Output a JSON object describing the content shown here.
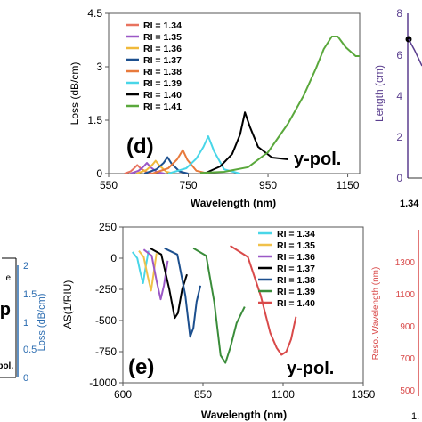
{
  "chart_data": [
    {
      "id": "d",
      "type": "line",
      "panel_label": "(d)",
      "annotation": "y-pol.",
      "xlabel": "Wavelength (nm)",
      "ylabel": "Loss (dB/cm)",
      "xlim": [
        550,
        1180
      ],
      "ylim": [
        0,
        4.5
      ],
      "xticks": [
        {
          "v": 550,
          "label": "550"
        },
        {
          "v": 750,
          "label": "750"
        },
        {
          "v": 950,
          "label": "950"
        },
        {
          "v": 1150,
          "label": "1150"
        }
      ],
      "yticks": [
        {
          "v": 0,
          "label": "0"
        },
        {
          "v": 1.5,
          "label": "1.5"
        },
        {
          "v": 3,
          "label": "3"
        },
        {
          "v": 4.5,
          "label": "4.5"
        }
      ],
      "legend_position": "top-left",
      "series": [
        {
          "name": "RI = 1.34",
          "color": "#e8735f",
          "x": [
            590,
            605,
            615,
            622,
            630,
            645,
            660
          ],
          "y": [
            0.0,
            0.06,
            0.16,
            0.24,
            0.15,
            0.04,
            0.0
          ]
        },
        {
          "name": "RI = 1.35",
          "color": "#9b58c6",
          "x": [
            605,
            625,
            638,
            646,
            655,
            672,
            690
          ],
          "y": [
            0.0,
            0.08,
            0.2,
            0.3,
            0.18,
            0.04,
            0.0
          ]
        },
        {
          "name": "RI = 1.36",
          "color": "#f0b93a",
          "x": [
            620,
            645,
            660,
            668,
            678,
            695,
            715
          ],
          "y": [
            0.0,
            0.1,
            0.25,
            0.36,
            0.22,
            0.05,
            0.0
          ]
        },
        {
          "name": "RI = 1.37",
          "color": "#1c4f8e",
          "x": [
            640,
            670,
            688,
            698,
            708,
            728,
            750
          ],
          "y": [
            0.0,
            0.12,
            0.3,
            0.46,
            0.28,
            0.06,
            0.0
          ]
        },
        {
          "name": "RI = 1.38",
          "color": "#e87a3c",
          "x": [
            660,
            700,
            722,
            736,
            748,
            770,
            800
          ],
          "y": [
            0.0,
            0.15,
            0.4,
            0.66,
            0.38,
            0.08,
            0.0
          ]
        },
        {
          "name": "RI = 1.39",
          "color": "#49d6e8",
          "x": [
            700,
            745,
            770,
            788,
            800,
            815,
            840,
            880
          ],
          "y": [
            0.0,
            0.15,
            0.42,
            0.75,
            1.05,
            0.62,
            0.12,
            0.0
          ]
        },
        {
          "name": "RI = 1.40",
          "color": "#000000",
          "x": [
            790,
            830,
            860,
            880,
            892,
            905,
            925,
            960,
            1000
          ],
          "y": [
            0.0,
            0.2,
            0.55,
            1.1,
            1.72,
            1.3,
            0.75,
            0.45,
            0.4
          ]
        },
        {
          "name": "RI = 1.41",
          "color": "#5aa83c",
          "x": [
            780,
            840,
            900,
            950,
            1000,
            1040,
            1070,
            1090,
            1110,
            1125,
            1145,
            1170,
            1180
          ],
          "y": [
            0.02,
            0.05,
            0.18,
            0.6,
            1.4,
            2.2,
            2.95,
            3.5,
            3.85,
            3.85,
            3.55,
            3.3,
            3.3
          ]
        }
      ]
    },
    {
      "id": "e",
      "type": "line",
      "panel_label": "(e)",
      "annotation": "y-pol.",
      "xlabel": "Wavelength (nm)",
      "ylabel": "AS(1/RIU)",
      "xlim": [
        600,
        1350
      ],
      "ylim": [
        -1000,
        250
      ],
      "xticks": [
        {
          "v": 600,
          "label": "600"
        },
        {
          "v": 850,
          "label": "850"
        },
        {
          "v": 1100,
          "label": "1100"
        },
        {
          "v": 1350,
          "label": "1350"
        }
      ],
      "yticks": [
        {
          "v": 250,
          "label": "250"
        },
        {
          "v": 0,
          "label": "0"
        },
        {
          "v": -250,
          "label": "-250"
        },
        {
          "v": -500,
          "label": "-500"
        },
        {
          "v": -750,
          "label": "-750"
        },
        {
          "v": -1000,
          "label": "-1000"
        }
      ],
      "legend_position": "top-right",
      "series": [
        {
          "name": "RI = 1.34",
          "color": "#49d6e8",
          "x": [
            630,
            645,
            655,
            663,
            670,
            680
          ],
          "y": [
            50,
            0,
            -120,
            -200,
            -90,
            60
          ]
        },
        {
          "name": "RI = 1.35",
          "color": "#f0c14a",
          "x": [
            650,
            665,
            678,
            688,
            695,
            705
          ],
          "y": [
            60,
            10,
            -150,
            -260,
            -140,
            40
          ]
        },
        {
          "name": "RI = 1.36",
          "color": "#9b58c6",
          "x": [
            665,
            690,
            705,
            718,
            728,
            740
          ],
          "y": [
            70,
            20,
            -180,
            -330,
            -220,
            -20
          ]
        },
        {
          "name": "RI = 1.37",
          "color": "#000000",
          "x": [
            685,
            720,
            745,
            762,
            772,
            785,
            800
          ],
          "y": [
            80,
            30,
            -250,
            -480,
            -440,
            -250,
            -130
          ]
        },
        {
          "name": "RI = 1.38",
          "color": "#1c4f8e",
          "x": [
            730,
            770,
            795,
            810,
            820,
            830,
            842
          ],
          "y": [
            80,
            30,
            -300,
            -630,
            -560,
            -350,
            -220
          ]
        },
        {
          "name": "RI = 1.39",
          "color": "#3a8c3a",
          "x": [
            820,
            860,
            885,
            905,
            920,
            935,
            955,
            980
          ],
          "y": [
            80,
            20,
            -350,
            -780,
            -840,
            -720,
            -520,
            -390
          ]
        },
        {
          "name": "RI = 1.40",
          "color": "#d94a4a",
          "x": [
            935,
            990,
            1030,
            1060,
            1080,
            1095,
            1110,
            1125,
            1140
          ],
          "y": [
            100,
            10,
            -300,
            -600,
            -720,
            -775,
            -750,
            -650,
            -470
          ]
        }
      ]
    }
  ],
  "partial_panels": {
    "top_right": {
      "ylabel": "Length (cm)",
      "yticks": [
        "8",
        "6",
        "4",
        "2",
        "0"
      ],
      "xtick": "1.34",
      "axis_color": "#5b3f8f"
    },
    "bottom_right": {
      "ylabel": "Reso. Wavelength (nm)",
      "yticks": [
        "1300",
        "1100",
        "900",
        "700",
        "500"
      ],
      "xtick": "1.",
      "axis_color": "#d94a4a"
    },
    "left": {
      "ylabel": "Loss (dB/cm)",
      "yticks": [
        "2",
        "1.5",
        "1",
        "0.5",
        "0"
      ],
      "fragment_lines": [
        "e",
        "p"
      ],
      "pol_label": "-pol.",
      "axis_color": "#2b6cb0"
    }
  }
}
